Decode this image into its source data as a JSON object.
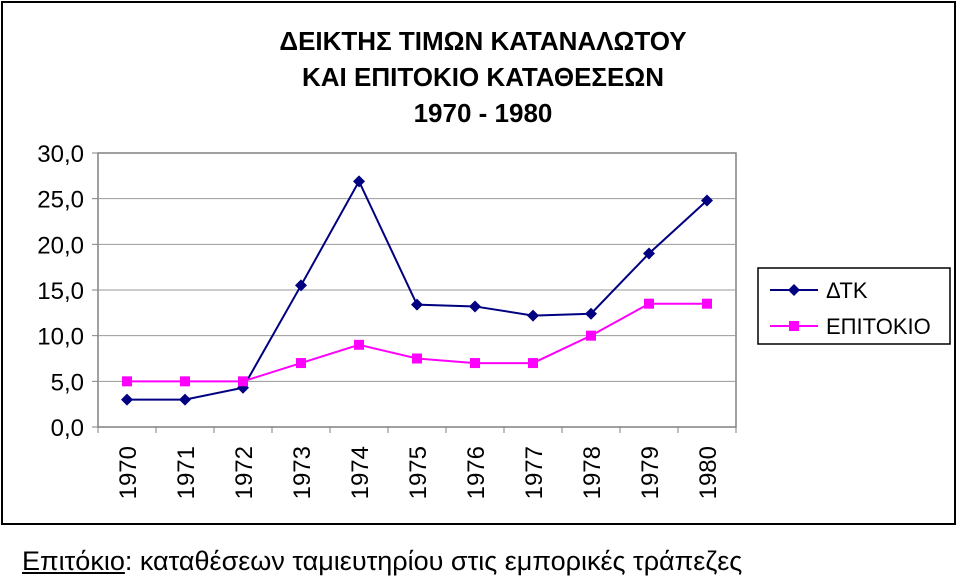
{
  "chart_data": {
    "type": "line",
    "title_lines": [
      "ΔΕΙΚΤΗΣ ΤΙΜΩΝ ΚΑΤΑΝΑΛΩΤΟΥ",
      "ΚΑΙ ΕΠΙΤΟΚΙΟ ΚΑΤΑΘΕΣΕΩΝ",
      "1970 - 1980"
    ],
    "categories": [
      "1970",
      "1971",
      "1972",
      "1973",
      "1974",
      "1975",
      "1976",
      "1977",
      "1978",
      "1979",
      "1980"
    ],
    "y_ticks": [
      "0,0",
      "5,0",
      "10,0",
      "15,0",
      "20,0",
      "25,0",
      "30,0"
    ],
    "ylim": [
      0,
      30
    ],
    "grid": true,
    "legend_position": "right",
    "series": [
      {
        "name": "ΔΤΚ",
        "color": "#000080",
        "marker": "diamond",
        "values": [
          3.0,
          3.0,
          4.3,
          15.5,
          26.9,
          13.4,
          13.2,
          12.2,
          12.4,
          19.0,
          24.8
        ]
      },
      {
        "name": "ΕΠΙΤΟΚΙΟ",
        "color": "#ff00ff",
        "marker": "square",
        "values": [
          5.0,
          5.0,
          5.0,
          7.0,
          9.0,
          7.5,
          7.0,
          7.0,
          10.0,
          13.5,
          13.5
        ]
      }
    ]
  },
  "caption": {
    "term": "Επιτόκιο",
    "rest": ": καταθέσεων ταμιευτηρίου στις εμπορικές τράπεζες"
  }
}
